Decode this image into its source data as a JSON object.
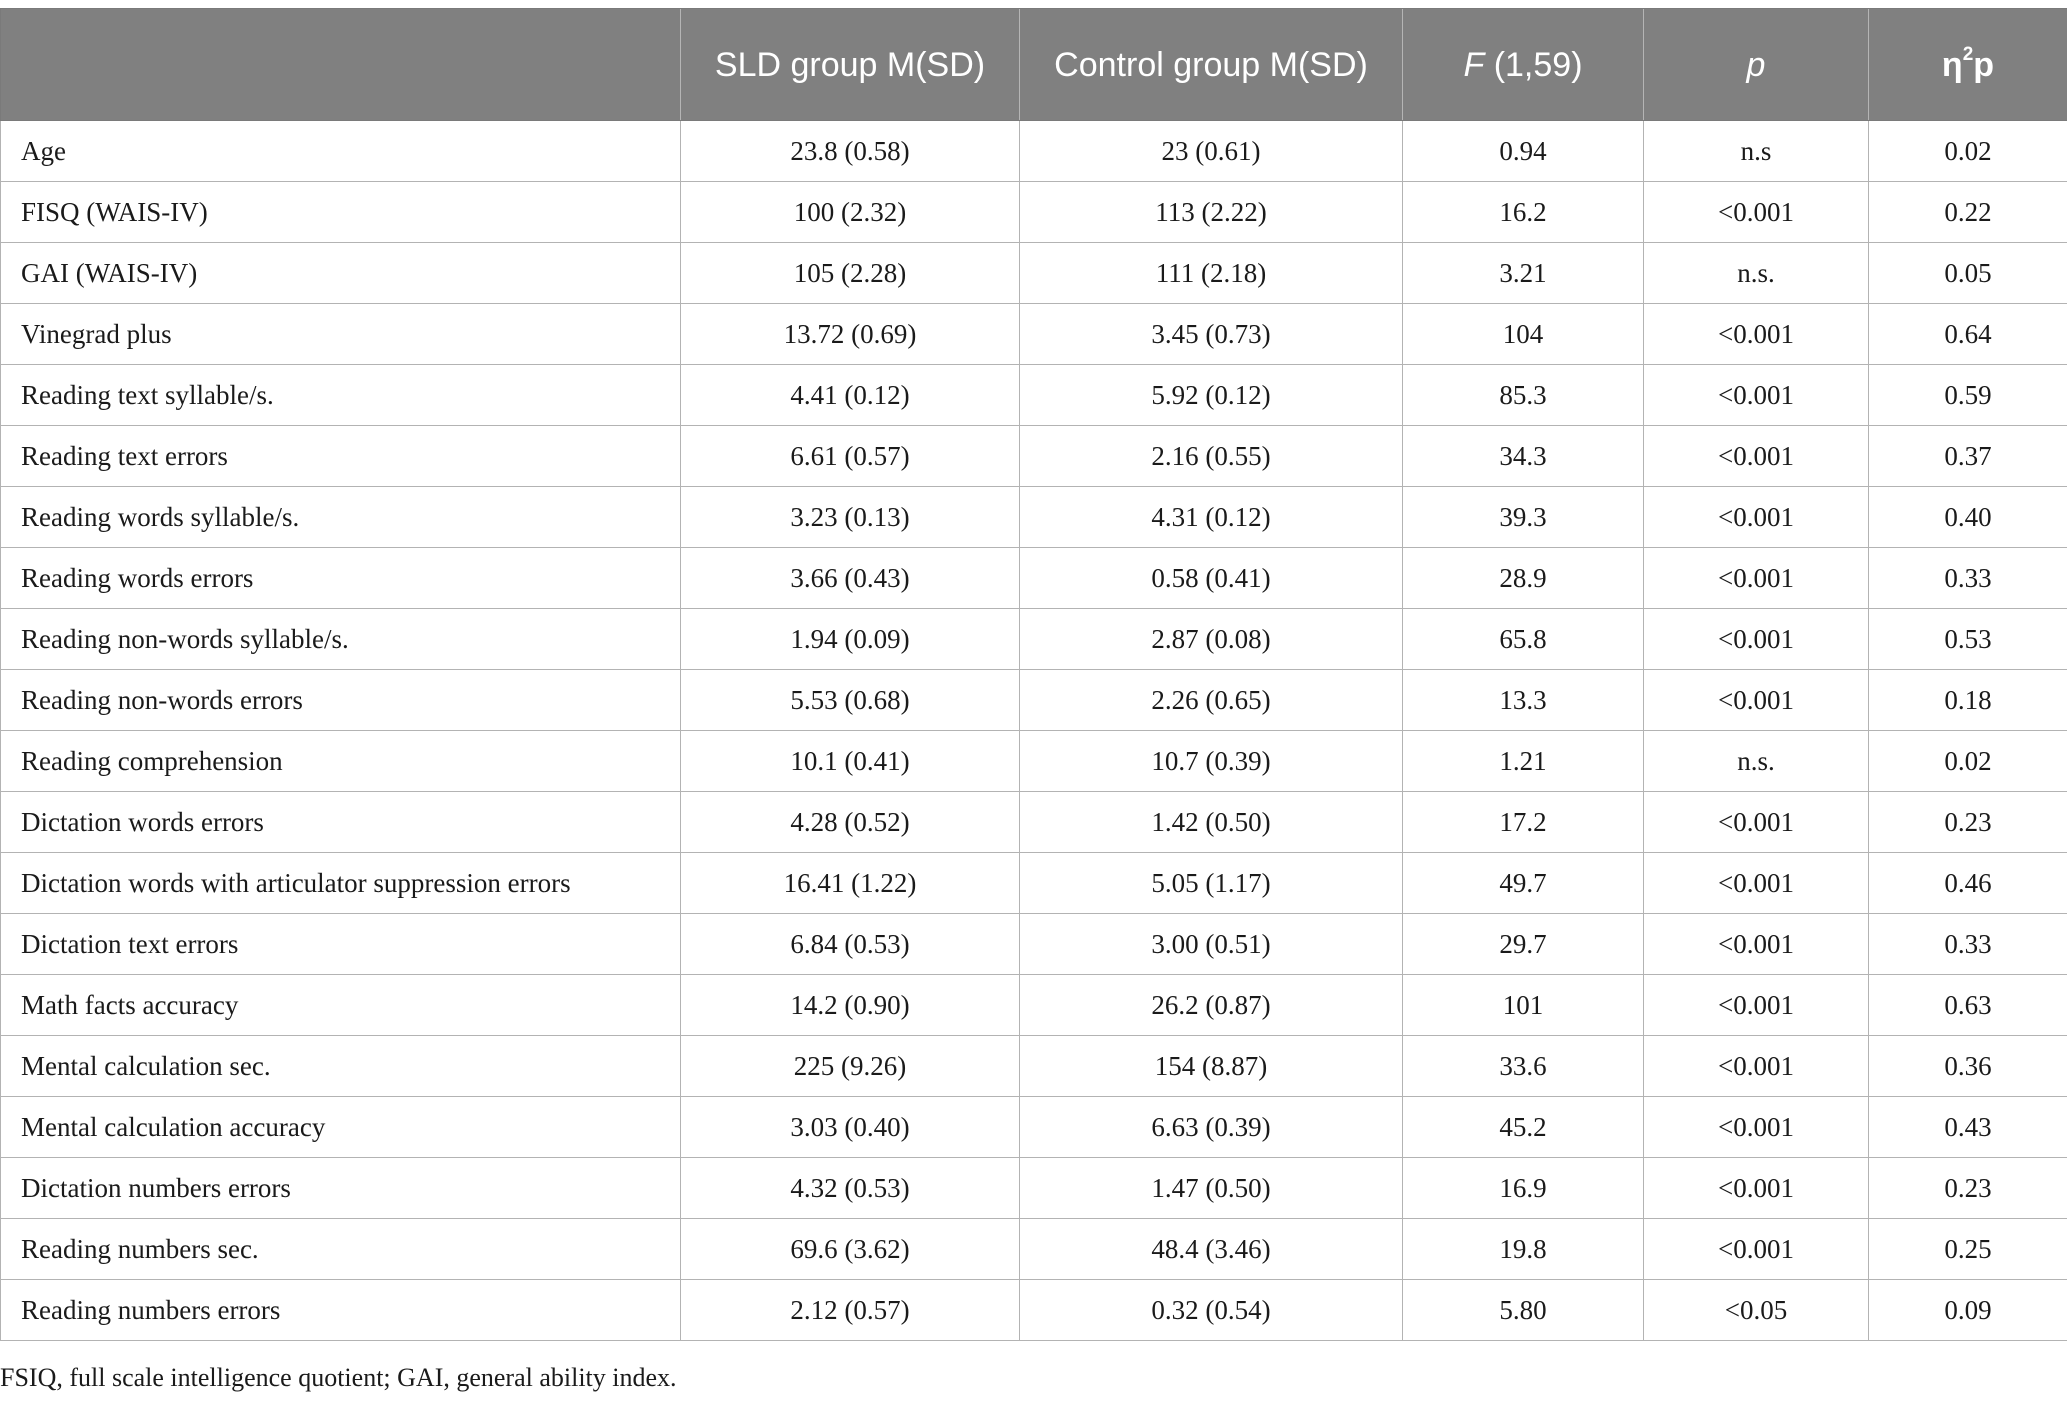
{
  "table": {
    "headers": [
      {
        "text": ""
      },
      {
        "text": "SLD group M(SD)"
      },
      {
        "text": "Control group M(SD)"
      },
      {
        "main": "F",
        "rest": " (1,59)"
      },
      {
        "text": "p"
      },
      {
        "base": "η",
        "sup": "2",
        "rest": "p"
      }
    ],
    "rows": [
      [
        "Age",
        "23.8 (0.58)",
        "23 (0.61)",
        "0.94",
        "n.s",
        "0.02"
      ],
      [
        "FISQ (WAIS-IV)",
        "100 (2.32)",
        "113 (2.22)",
        "16.2",
        "<0.001",
        "0.22"
      ],
      [
        "GAI (WAIS-IV)",
        "105 (2.28)",
        "111 (2.18)",
        "3.21",
        "n.s.",
        "0.05"
      ],
      [
        "Vinegrad plus",
        "13.72 (0.69)",
        "3.45 (0.73)",
        "104",
        "<0.001",
        "0.64"
      ],
      [
        "Reading text syllable/s.",
        "4.41 (0.12)",
        "5.92 (0.12)",
        "85.3",
        "<0.001",
        "0.59"
      ],
      [
        "Reading text errors",
        "6.61 (0.57)",
        "2.16 (0.55)",
        "34.3",
        "<0.001",
        "0.37"
      ],
      [
        "Reading words syllable/s.",
        "3.23 (0.13)",
        "4.31 (0.12)",
        "39.3",
        "<0.001",
        "0.40"
      ],
      [
        "Reading words errors",
        "3.66 (0.43)",
        "0.58 (0.41)",
        "28.9",
        "<0.001",
        "0.33"
      ],
      [
        "Reading non-words syllable/s.",
        "1.94 (0.09)",
        "2.87 (0.08)",
        "65.8",
        "<0.001",
        "0.53"
      ],
      [
        "Reading non-words errors",
        "5.53 (0.68)",
        "2.26 (0.65)",
        "13.3",
        "<0.001",
        "0.18"
      ],
      [
        "Reading comprehension",
        "10.1 (0.41)",
        "10.7 (0.39)",
        "1.21",
        "n.s.",
        "0.02"
      ],
      [
        "Dictation words errors",
        "4.28 (0.52)",
        "1.42 (0.50)",
        "17.2",
        "<0.001",
        "0.23"
      ],
      [
        "Dictation words with articulator suppression errors",
        "16.41 (1.22)",
        "5.05 (1.17)",
        "49.7",
        "<0.001",
        "0.46"
      ],
      [
        "Dictation text errors",
        "6.84 (0.53)",
        "3.00 (0.51)",
        "29.7",
        "<0.001",
        "0.33"
      ],
      [
        "Math facts accuracy",
        "14.2 (0.90)",
        "26.2 (0.87)",
        "101",
        "<0.001",
        "0.63"
      ],
      [
        "Mental calculation sec.",
        "225 (9.26)",
        "154 (8.87)",
        "33.6",
        "<0.001",
        "0.36"
      ],
      [
        "Mental calculation accuracy",
        "3.03 (0.40)",
        "6.63 (0.39)",
        "45.2",
        "<0.001",
        "0.43"
      ],
      [
        "Dictation numbers errors",
        "4.32 (0.53)",
        "1.47 (0.50)",
        "16.9",
        "<0.001",
        "0.23"
      ],
      [
        "Reading numbers sec.",
        "69.6 (3.62)",
        "48.4 (3.46)",
        "19.8",
        "<0.001",
        "0.25"
      ],
      [
        "Reading numbers errors",
        "2.12 (0.57)",
        "0.32 (0.54)",
        "5.80",
        "<0.05",
        "0.09"
      ]
    ]
  },
  "footnote": "FSIQ, full scale intelligence quotient; GAI, general ability index."
}
